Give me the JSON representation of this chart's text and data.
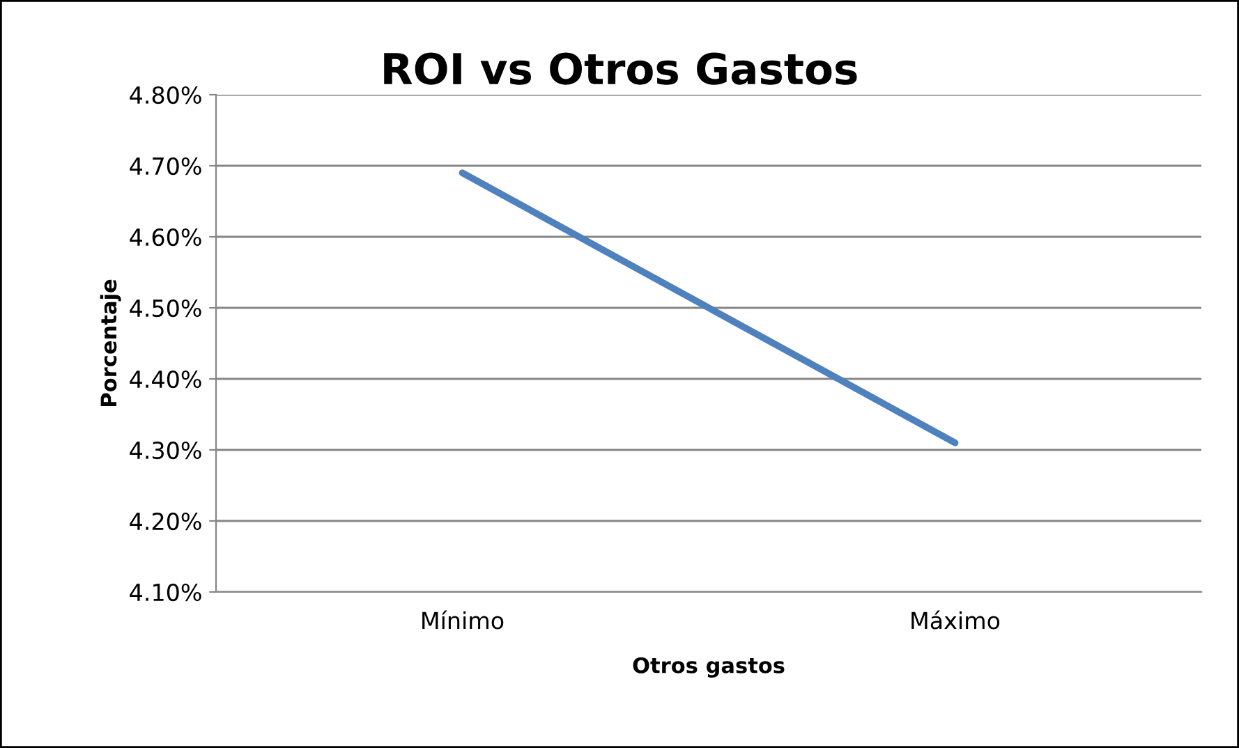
{
  "chart_data": {
    "type": "line",
    "title": "ROI vs Otros Gastos",
    "xlabel": "Otros gastos",
    "ylabel": "Porcentaje",
    "categories": [
      "Mínimo",
      "Máximo"
    ],
    "series": [
      {
        "color": "#4f81bd",
        "values": [
          4.69,
          4.31
        ]
      }
    ],
    "ylim": [
      4.1,
      4.8
    ],
    "yticks": [
      {
        "value": 4.1,
        "label": "4.10%"
      },
      {
        "value": 4.2,
        "label": "4.20%"
      },
      {
        "value": 4.3,
        "label": "4.30%"
      },
      {
        "value": 4.4,
        "label": "4.40%"
      },
      {
        "value": 4.5,
        "label": "4.50%"
      },
      {
        "value": 4.6,
        "label": "4.60%"
      },
      {
        "value": 4.7,
        "label": "4.70%"
      },
      {
        "value": 4.8,
        "label": "4.80%"
      }
    ],
    "grid": "y",
    "legend": false,
    "marker": "none",
    "line_style": "solid"
  }
}
